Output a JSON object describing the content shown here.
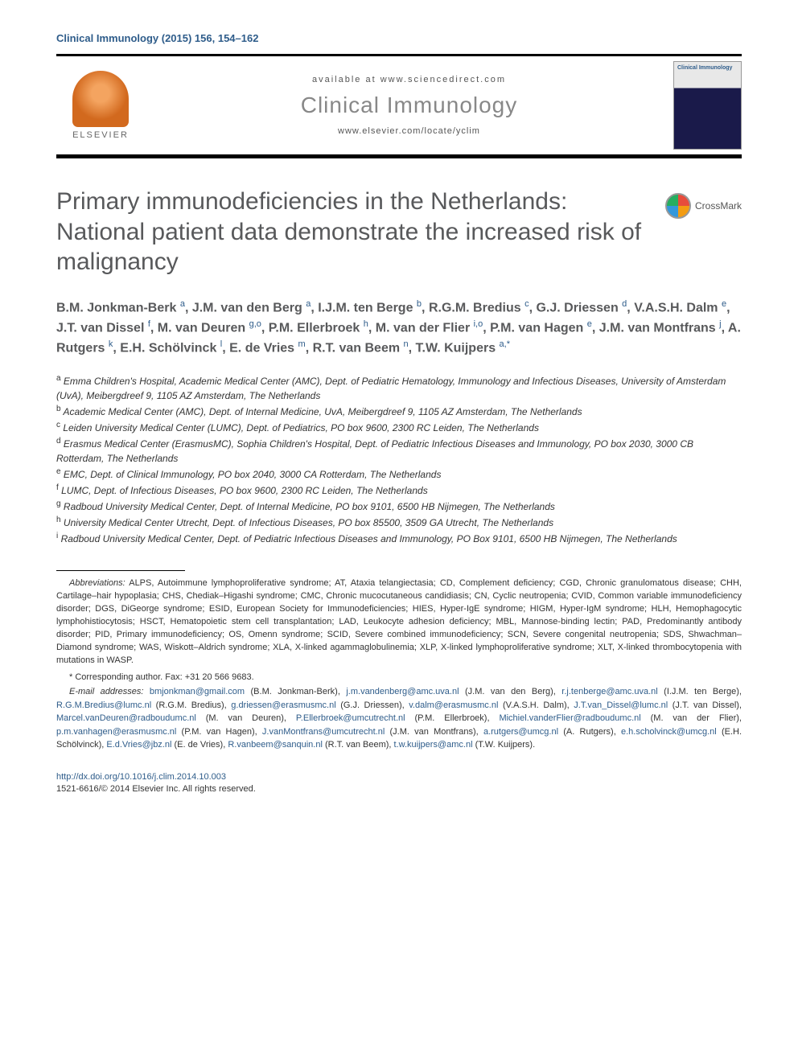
{
  "journal_ref": "Clinical Immunology (2015) 156, 154–162",
  "masthead": {
    "available_at": "available at www.sciencedirect.com",
    "journal_name": "Clinical Immunology",
    "journal_url": "www.elsevier.com/locate/yclim",
    "elsevier_label": "ELSEVIER",
    "cover_title": "Clinical Immunology"
  },
  "crossmark_label": "CrossMark",
  "article_title": "Primary immunodeficiencies in the Netherlands: National patient data demonstrate the increased risk of malignancy",
  "authors_html": "B.M. Jonkman-Berk <sup>a</sup>, J.M. van den Berg <sup>a</sup>, I.J.M. ten Berge <sup>b</sup>, R.G.M. Bredius <sup>c</sup>, G.J. Driessen <sup>d</sup>, V.A.S.H. Dalm <sup>e</sup>, J.T. van Dissel <sup>f</sup>, M. van Deuren <sup>g,o</sup>, P.M. Ellerbroek <sup>h</sup>, M. van der Flier <sup>i,o</sup>, P.M. van Hagen <sup>e</sup>, J.M. van Montfrans <sup>j</sup>, A. Rutgers <sup>k</sup>, E.H. Schölvinck <sup>l</sup>, E. de Vries <sup>m</sup>, R.T. van Beem <sup>n</sup>, T.W. Kuijpers <sup>a,*</sup>",
  "affiliations": [
    "<sup>a</sup> Emma Children's Hospital, Academic Medical Center (AMC), Dept. of Pediatric Hematology, Immunology and Infectious Diseases, University of Amsterdam (UvA), Meibergdreef 9, 1105 AZ Amsterdam, The Netherlands",
    "<sup>b</sup> Academic Medical Center (AMC), Dept. of Internal Medicine, UvA, Meibergdreef 9, 1105 AZ Amsterdam, The Netherlands",
    "<sup>c</sup> Leiden University Medical Center (LUMC), Dept. of Pediatrics, PO box 9600, 2300 RC Leiden, The Netherlands",
    "<sup>d</sup> Erasmus Medical Center (ErasmusMC), Sophia Children's Hospital, Dept. of Pediatric Infectious Diseases and Immunology, PO box 2030, 3000 CB Rotterdam, The Netherlands",
    "<sup>e</sup> EMC, Dept. of Clinical Immunology, PO box 2040, 3000 CA Rotterdam, The Netherlands",
    "<sup>f</sup> LUMC, Dept. of Infectious Diseases, PO box 9600, 2300 RC Leiden, The Netherlands",
    "<sup>g</sup> Radboud University Medical Center, Dept. of Internal Medicine, PO box 9101, 6500 HB Nijmegen, The Netherlands",
    "<sup>h</sup> University Medical Center Utrecht, Dept. of Infectious Diseases, PO box 85500, 3509 GA Utrecht, The Netherlands",
    "<sup>i</sup> Radboud University Medical Center, Dept. of Pediatric Infectious Diseases and Immunology, PO Box 9101, 6500 HB Nijmegen, The Netherlands"
  ],
  "abbreviations_label": "Abbreviations:",
  "abbreviations_text": " ALPS, Autoimmune lymphoproliferative syndrome; AT, Ataxia telangiectasia; CD, Complement deficiency; CGD, Chronic granulomatous disease; CHH, Cartilage–hair hypoplasia; CHS, Chediak–Higashi syndrome; CMC, Chronic mucocutaneous candidiasis; CN, Cyclic neutropenia; CVID, Common variable immunodeficiency disorder; DGS, DiGeorge syndrome; ESID, European Society for Immunodeficiencies; HIES, Hyper-IgE syndrome; HIGM, Hyper-IgM syndrome; HLH, Hemophagocytic lymphohistiocytosis; HSCT, Hematopoietic stem cell transplantation; LAD, Leukocyte adhesion deficiency; MBL, Mannose-binding lectin; PAD, Predominantly antibody disorder; PID, Primary immunodeficiency; OS, Omenn syndrome; SCID, Severe combined immunodeficiency; SCN, Severe congenital neutropenia; SDS, Shwachman–Diamond syndrome; WAS, Wiskott–Aldrich syndrome; XLA, X-linked agammaglobulinemia; XLP, X-linked lymphoproliferative syndrome; XLT, X-linked thrombocytopenia with mutations in WASP.",
  "corresponding_text": "* Corresponding author. Fax: +31 20 566 9683.",
  "emails_label": "E-mail addresses:",
  "emails": [
    {
      "email": "bmjonkman@gmail.com",
      "name": "(B.M. Jonkman-Berk)"
    },
    {
      "email": "j.m.vandenberg@amc.uva.nl",
      "name": "(J.M. van den Berg)"
    },
    {
      "email": "r.j.tenberge@amc.uva.nl",
      "name": "(I.J.M. ten Berge)"
    },
    {
      "email": "R.G.M.Bredius@lumc.nl",
      "name": "(R.G.M. Bredius)"
    },
    {
      "email": "g.driessen@erasmusmc.nl",
      "name": "(G.J. Driessen)"
    },
    {
      "email": "v.dalm@erasmusmc.nl",
      "name": "(V.A.S.H. Dalm)"
    },
    {
      "email": "J.T.van_Dissel@lumc.nl",
      "name": "(J.T. van Dissel)"
    },
    {
      "email": "Marcel.vanDeuren@radboudumc.nl",
      "name": "(M. van Deuren)"
    },
    {
      "email": "P.Ellerbroek@umcutrecht.nl",
      "name": "(P.M. Ellerbroek)"
    },
    {
      "email": "Michiel.vanderFlier@radboudumc.nl",
      "name": "(M. van der Flier)"
    },
    {
      "email": "p.m.vanhagen@erasmusmc.nl",
      "name": "(P.M. van Hagen)"
    },
    {
      "email": "J.vanMontfrans@umcutrecht.nl",
      "name": "(J.M. van Montfrans)"
    },
    {
      "email": "a.rutgers@umcg.nl",
      "name": "(A. Rutgers)"
    },
    {
      "email": "e.h.scholvinck@umcg.nl",
      "name": "(E.H. Schölvinck)"
    },
    {
      "email": "E.d.Vries@jbz.nl",
      "name": "(E. de Vries)"
    },
    {
      "email": "R.vanbeem@sanquin.nl",
      "name": "(R.T. van Beem)"
    },
    {
      "email": "t.w.kuijpers@amc.nl",
      "name": "(T.W. Kuijpers)"
    }
  ],
  "doi": "http://dx.doi.org/10.1016/j.clim.2014.10.003",
  "copyright": "1521-6616/© 2014 Elsevier Inc. All rights reserved.",
  "colors": {
    "link": "#2e5c8a",
    "title_gray": "#58595b",
    "text": "#333333",
    "background": "#ffffff"
  }
}
